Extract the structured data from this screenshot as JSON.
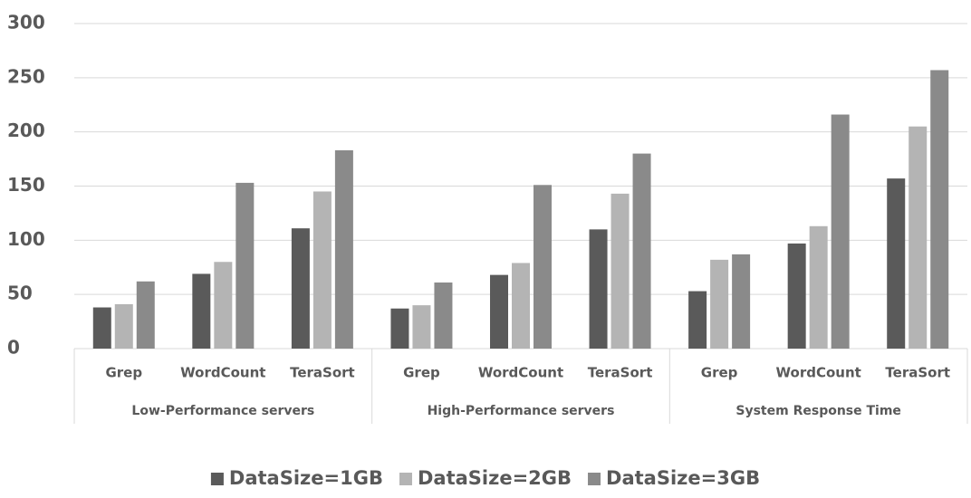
{
  "chart_data": {
    "type": "bar",
    "categories": [
      "Grep",
      "WordCount",
      "TeraSort",
      "Grep",
      "WordCount",
      "TeraSort",
      "Grep",
      "WordCount",
      "TeraSort"
    ],
    "groups": [
      "Low-Performance servers",
      "High-Performance servers",
      "System Response Time"
    ],
    "series": [
      {
        "name": "DataSize=1GB",
        "color": "#5a5a5a",
        "values": [
          38,
          69,
          111,
          37,
          68,
          110,
          53,
          97,
          157
        ]
      },
      {
        "name": "DataSize=2GB",
        "color": "#b4b4b4",
        "values": [
          41,
          80,
          145,
          40,
          79,
          143,
          82,
          113,
          205
        ]
      },
      {
        "name": "DataSize=3GB",
        "color": "#8a8a8a",
        "values": [
          62,
          153,
          183,
          61,
          151,
          180,
          87,
          216,
          257
        ]
      }
    ],
    "ylim": [
      0,
      300
    ],
    "yticks": [
      0,
      50,
      100,
      150,
      200,
      250,
      300
    ],
    "grid": true,
    "legend": "bottom"
  }
}
